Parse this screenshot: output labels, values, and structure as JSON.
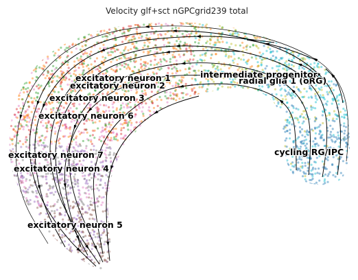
{
  "chart_data": {
    "type": "scatter",
    "title": "Velocity glf+sct nGPCgrid239 total",
    "embedding": "umap",
    "arrows": "streamlines",
    "axes_visible": false,
    "grid": false,
    "legend": "on data",
    "clusters": [
      {
        "name": "cycling RG/IPC",
        "color": "#1f77b4"
      },
      {
        "name": "radial glia 1 (oRG)",
        "color": "#17becf"
      },
      {
        "name": "intermediate progenitor",
        "color": "#bcbd22"
      },
      {
        "name": "excitatory neuron 1",
        "color": "#ff7f0e"
      },
      {
        "name": "excitatory neuron 2",
        "color": "#2ca02c"
      },
      {
        "name": "excitatory neuron 3",
        "color": "#d62728"
      },
      {
        "name": "excitatory neuron 6",
        "color": "#e377c2"
      },
      {
        "name": "excitatory neuron 7",
        "color": "#7f7f7f"
      },
      {
        "name": "excitatory neuron 4",
        "color": "#9467bd"
      },
      {
        "name": "excitatory neuron 5",
        "color": "#8c564b"
      }
    ]
  }
}
